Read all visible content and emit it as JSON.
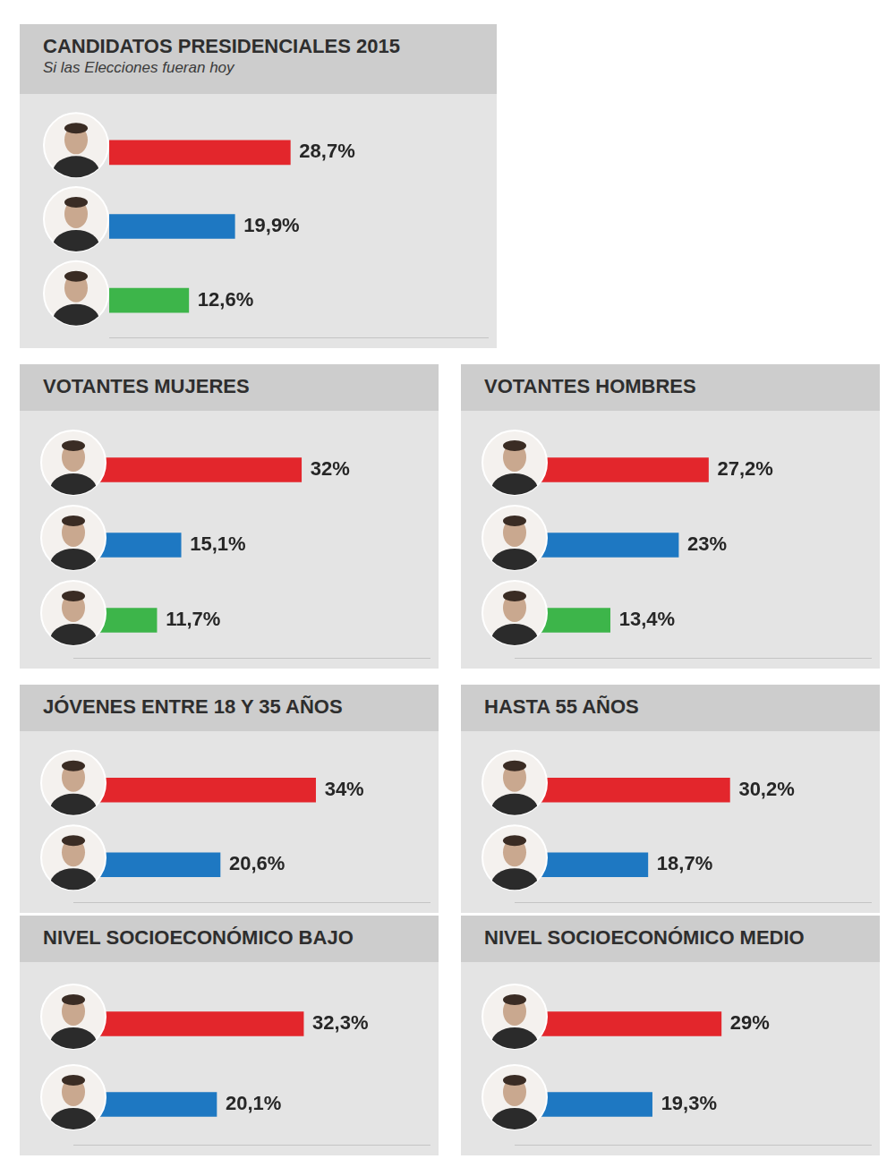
{
  "chart_data": [
    {
      "type": "bar",
      "orientation": "horizontal",
      "title": "CANDIDATOS PRESIDENCIALES 2015",
      "subtitle": "Si las Elecciones fueran hoy",
      "categories": [
        null,
        null,
        null
      ],
      "values": [
        28.7,
        19.9,
        12.6
      ],
      "value_labels": [
        "28,7%",
        "19,9%",
        "12,6%"
      ],
      "colors": [
        "#e3262c",
        "#1e78c2",
        "#3db54a"
      ],
      "xlim": [
        0,
        60
      ],
      "data_labels": true,
      "tick_labels": false,
      "grid": false
    },
    {
      "type": "bar",
      "orientation": "horizontal",
      "title": "VOTANTES MUJERES",
      "categories": [
        null,
        null,
        null
      ],
      "values": [
        32,
        15.1,
        11.7
      ],
      "value_labels": [
        "32%",
        "15,1%",
        "11,7%"
      ],
      "colors": [
        "#e3262c",
        "#1e78c2",
        "#3db54a"
      ],
      "xlim": [
        0,
        50
      ],
      "data_labels": true,
      "tick_labels": false,
      "grid": false
    },
    {
      "type": "bar",
      "orientation": "horizontal",
      "title": "VOTANTES HOMBRES",
      "categories": [
        null,
        null,
        null
      ],
      "values": [
        27.2,
        23,
        13.4
      ],
      "value_labels": [
        "27,2%",
        "23%",
        "13,4%"
      ],
      "colors": [
        "#e3262c",
        "#1e78c2",
        "#3db54a"
      ],
      "xlim": [
        0,
        50
      ],
      "data_labels": true,
      "tick_labels": false,
      "grid": false
    },
    {
      "type": "bar",
      "orientation": "horizontal",
      "title": "JÓVENES ENTRE 18 Y 35 AÑOS",
      "categories": [
        null,
        null
      ],
      "values": [
        34,
        20.6
      ],
      "value_labels": [
        "34%",
        "20,6%"
      ],
      "colors": [
        "#e3262c",
        "#1e78c2"
      ],
      "xlim": [
        0,
        50
      ],
      "data_labels": true,
      "tick_labels": false,
      "grid": false
    },
    {
      "type": "bar",
      "orientation": "horizontal",
      "title": "HASTA 55 AÑOS",
      "categories": [
        null,
        null
      ],
      "values": [
        30.2,
        18.7
      ],
      "value_labels": [
        "30,2%",
        "18,7%"
      ],
      "colors": [
        "#e3262c",
        "#1e78c2"
      ],
      "xlim": [
        0,
        50
      ],
      "data_labels": true,
      "tick_labels": false,
      "grid": false
    },
    {
      "type": "bar",
      "orientation": "horizontal",
      "title": "NIVEL SOCIOECONÓMICO BAJO",
      "categories": [
        null,
        null
      ],
      "values": [
        32.3,
        20.1
      ],
      "value_labels": [
        "32,3%",
        "20,1%"
      ],
      "colors": [
        "#e3262c",
        "#1e78c2"
      ],
      "xlim": [
        0,
        50
      ],
      "data_labels": true,
      "tick_labels": false,
      "grid": false
    },
    {
      "type": "bar",
      "orientation": "horizontal",
      "title": "NIVEL SOCIOECONÓMICO MEDIO",
      "categories": [
        null,
        null
      ],
      "values": [
        29,
        19.3
      ],
      "value_labels": [
        "29%",
        "19,3%"
      ],
      "colors": [
        "#e3262c",
        "#1e78c2"
      ],
      "xlim": [
        0,
        50
      ],
      "data_labels": true,
      "tick_labels": false,
      "grid": false
    }
  ]
}
